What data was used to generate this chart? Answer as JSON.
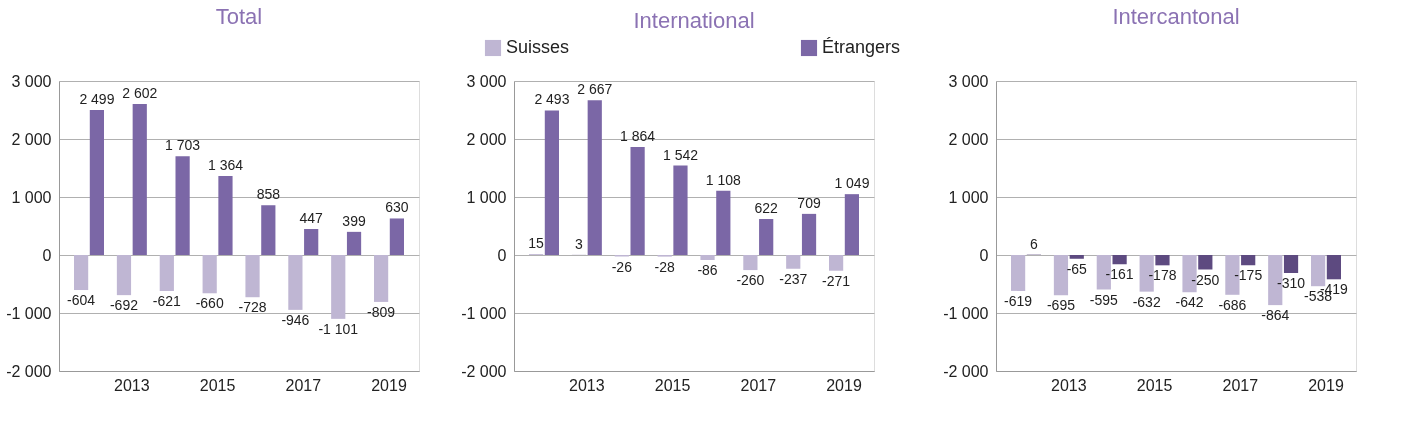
{
  "chart_data": [
    {
      "type": "bar",
      "title": "Total",
      "categories": [
        null,
        "2013",
        null,
        "2015",
        null,
        "2017",
        null,
        "2019"
      ],
      "ylim": [
        -2000,
        3000
      ],
      "yticks": [
        {
          "value": -2000,
          "label": "-2 000"
        },
        {
          "value": -1000,
          "label": "-1 000"
        },
        0,
        {
          "value": 1000,
          "label": "1 000"
        },
        {
          "value": 2000,
          "label": "2 000"
        },
        {
          "value": 3000,
          "label": "3 000"
        }
      ],
      "grid": "y",
      "legend": false,
      "series": [
        {
          "color": "#bfb6d3",
          "values": [
            -604,
            -692,
            -621,
            -660,
            -728,
            -946,
            -1101,
            -809
          ],
          "value_labels": [
            "-604",
            "-692",
            "-621",
            "-660",
            "-728",
            "-946",
            "-1 101",
            "-809"
          ]
        },
        {
          "color": "#7b67a6",
          "values": [
            2499,
            2602,
            1703,
            1364,
            858,
            447,
            399,
            630
          ],
          "value_labels": [
            "2 499",
            "2 602",
            "1 703",
            "1 364",
            "858",
            "447",
            "399",
            "630"
          ]
        }
      ]
    },
    {
      "type": "bar",
      "title": "International",
      "categories": [
        null,
        "2013",
        null,
        "2015",
        null,
        "2017",
        null,
        "2019"
      ],
      "ylim": [
        -2000,
        3000
      ],
      "yticks": [
        {
          "value": -2000,
          "label": "-2 000"
        },
        {
          "value": -1000,
          "label": "-1 000"
        },
        0,
        {
          "value": 1000,
          "label": "1 000"
        },
        {
          "value": 2000,
          "label": "2 000"
        },
        {
          "value": 3000,
          "label": "3 000"
        }
      ],
      "grid": "y",
      "legend": "top",
      "series": [
        {
          "name": "Suisses",
          "color": "#bfb6d3",
          "values": [
            15,
            3,
            -26,
            -28,
            -86,
            -260,
            -237,
            -271
          ],
          "value_labels": [
            "15",
            "3",
            "-26",
            "-28",
            "-86",
            "-260",
            "-237",
            "-271"
          ]
        },
        {
          "name": "Étrangers",
          "color": "#7b67a6",
          "values": [
            2493,
            2667,
            1864,
            1542,
            1108,
            622,
            709,
            1049
          ],
          "value_labels": [
            "2 493",
            "2 667",
            "1 864",
            "1 542",
            "1 108",
            "622",
            "709",
            "1 049"
          ]
        }
      ]
    },
    {
      "type": "bar",
      "title": "Intercantonal",
      "categories": [
        null,
        "2013",
        null,
        "2015",
        null,
        "2017",
        null,
        "2019"
      ],
      "ylim": [
        -2000,
        3000
      ],
      "yticks": [
        {
          "value": -2000,
          "label": "-2 000"
        },
        {
          "value": -1000,
          "label": "-1 000"
        },
        0,
        {
          "value": 1000,
          "label": "1 000"
        },
        {
          "value": 2000,
          "label": "2 000"
        },
        {
          "value": 3000,
          "label": "3 000"
        }
      ],
      "grid": "y",
      "legend": false,
      "series": [
        {
          "color": "#bfb6d3",
          "values": [
            -619,
            -695,
            -595,
            -632,
            -642,
            -686,
            -864,
            -538
          ],
          "value_labels": [
            "-619",
            "-695",
            "-595",
            "-632",
            "-642",
            "-686",
            "-864",
            "-538"
          ]
        },
        {
          "color": "#5d4a80",
          "values": [
            6,
            -65,
            -161,
            -178,
            -250,
            -175,
            -310,
            -419
          ],
          "value_labels": [
            "6",
            "-65",
            "-161",
            "-178",
            "-250",
            "-175",
            "-310",
            "-419"
          ]
        }
      ]
    }
  ]
}
